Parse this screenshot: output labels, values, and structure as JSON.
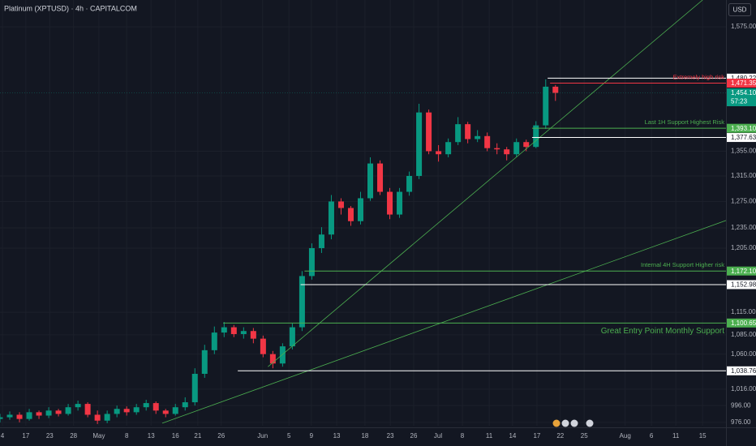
{
  "chart_data": {
    "type": "candlestick",
    "title": "Platinum (XPTUSD) · 4h · CAPITALCOM",
    "currency": "USD",
    "log_scale": true,
    "grid": true,
    "up_color": "#089981",
    "down_color": "#f23645",
    "xlim": [
      0,
      149
    ],
    "ylim": [
      972,
      1627
    ],
    "x": [
      0,
      2,
      4,
      6,
      8,
      10,
      12,
      14,
      16,
      18,
      20,
      22,
      24,
      26,
      28,
      30,
      32,
      34,
      36,
      38,
      40,
      42,
      44,
      46,
      48,
      50,
      52,
      54,
      56,
      58,
      60,
      62,
      64,
      66,
      68,
      70,
      72,
      74,
      76,
      78,
      80,
      82,
      84,
      86,
      88,
      90,
      92,
      94,
      96,
      98,
      100,
      102,
      104,
      106,
      108,
      110,
      112,
      114
    ],
    "open": [
      980,
      982,
      985,
      980,
      988,
      984,
      990,
      986,
      994,
      998,
      985,
      978,
      986,
      992,
      988,
      994,
      999,
      990,
      986,
      994,
      1000,
      1035,
      1065,
      1088,
      1095,
      1086,
      1090,
      1080,
      1060,
      1048,
      1070,
      1095,
      1165,
      1205,
      1225,
      1275,
      1265,
      1245,
      1280,
      1335,
      1290,
      1255,
      1290,
      1315,
      1420,
      1355,
      1350,
      1370,
      1400,
      1375,
      1380,
      1360,
      1358,
      1350,
      1370,
      1362,
      1398,
      1465
    ],
    "high": [
      986,
      989,
      988,
      992,
      990,
      994,
      992,
      998,
      1002,
      1000,
      990,
      990,
      996,
      995,
      998,
      1003,
      1001,
      992,
      998,
      1006,
      1042,
      1072,
      1096,
      1102,
      1098,
      1095,
      1094,
      1084,
      1064,
      1074,
      1100,
      1172,
      1212,
      1236,
      1285,
      1280,
      1268,
      1290,
      1345,
      1340,
      1296,
      1296,
      1322,
      1435,
      1425,
      1365,
      1376,
      1412,
      1404,
      1390,
      1386,
      1368,
      1362,
      1376,
      1374,
      1405,
      1478,
      1468
    ],
    "low": [
      976,
      979,
      976,
      978,
      980,
      981,
      983,
      984,
      990,
      982,
      974,
      975,
      982,
      984,
      985,
      990,
      986,
      982,
      984,
      990,
      996,
      1030,
      1060,
      1082,
      1082,
      1080,
      1074,
      1056,
      1042,
      1044,
      1066,
      1090,
      1160,
      1198,
      1218,
      1255,
      1238,
      1240,
      1276,
      1285,
      1248,
      1250,
      1284,
      1310,
      1350,
      1338,
      1345,
      1365,
      1368,
      1370,
      1355,
      1350,
      1340,
      1345,
      1355,
      1360,
      1392,
      1440
    ],
    "close": [
      982,
      985,
      980,
      988,
      984,
      990,
      986,
      994,
      998,
      985,
      978,
      986,
      992,
      988,
      994,
      999,
      990,
      986,
      994,
      1000,
      1035,
      1065,
      1088,
      1095,
      1086,
      1090,
      1080,
      1060,
      1048,
      1070,
      1095,
      1165,
      1205,
      1225,
      1275,
      1265,
      1245,
      1280,
      1335,
      1290,
      1255,
      1290,
      1315,
      1420,
      1355,
      1350,
      1370,
      1400,
      1375,
      1380,
      1360,
      1358,
      1350,
      1370,
      1362,
      1398,
      1465,
      1454
    ],
    "yticks": [
      {
        "value": 1575,
        "label": "1,575.00"
      },
      {
        "value": 1355,
        "label": "1,355.00"
      },
      {
        "value": 1315,
        "label": "1,315.00"
      },
      {
        "value": 1275,
        "label": "1,275.00"
      },
      {
        "value": 1235,
        "label": "1,235.00"
      },
      {
        "value": 1205,
        "label": "1,205.00"
      },
      {
        "value": 1115,
        "label": "1,115.00"
      },
      {
        "value": 1085,
        "label": "1,085.00"
      },
      {
        "value": 1060,
        "label": "1,060.00"
      },
      {
        "value": 1016,
        "label": "1,016.00"
      },
      {
        "value": 996,
        "label": "996.00"
      },
      {
        "value": 976,
        "label": "976.00"
      }
    ],
    "xticks": [
      {
        "value": 0.5,
        "label": "4"
      },
      {
        "value": 5.3,
        "label": "17"
      },
      {
        "value": 10.2,
        "label": "23"
      },
      {
        "value": 15.1,
        "label": "28"
      },
      {
        "value": 20.3,
        "label": "May"
      },
      {
        "value": 26,
        "label": "8"
      },
      {
        "value": 31,
        "label": "13"
      },
      {
        "value": 36,
        "label": "16"
      },
      {
        "value": 40.6,
        "label": "21"
      },
      {
        "value": 45.4,
        "label": "26"
      },
      {
        "value": 53.9,
        "label": "Jun"
      },
      {
        "value": 59.3,
        "label": "5"
      },
      {
        "value": 63.9,
        "label": "9"
      },
      {
        "value": 69.1,
        "label": "13"
      },
      {
        "value": 74.9,
        "label": "18"
      },
      {
        "value": 80.1,
        "label": "23"
      },
      {
        "value": 84.9,
        "label": "26"
      },
      {
        "value": 89.9,
        "label": "Jul"
      },
      {
        "value": 94.9,
        "label": "8"
      },
      {
        "value": 100.4,
        "label": "11"
      },
      {
        "value": 105.2,
        "label": "14"
      },
      {
        "value": 110.2,
        "label": "17"
      },
      {
        "value": 115,
        "label": "22"
      },
      {
        "value": 119.9,
        "label": "25"
      },
      {
        "value": 128.3,
        "label": "Aug"
      },
      {
        "value": 133.7,
        "label": "6"
      },
      {
        "value": 138.7,
        "label": "11"
      },
      {
        "value": 144.2,
        "label": "15"
      }
    ],
    "hlines": [
      {
        "value": 1480.22,
        "label": "1,480.22",
        "color": "#ffffff",
        "from": 112.4
      },
      {
        "value": 1471.35,
        "label": "1,471.35",
        "color": "#f23645",
        "from": 112.9,
        "text": "Extremely high risk"
      },
      {
        "value": 1454.1,
        "label": "1,454.10",
        "countdown": "57:23",
        "color": "#089981",
        "from": 0,
        "dashed": true
      },
      {
        "value": 1393.1,
        "label": "1,393.10",
        "color": "#4caf50",
        "from": 109.2,
        "text": "Last 1H Support Highest Risk"
      },
      {
        "value": 1377.63,
        "label": "1,377.63",
        "color": "#ffffff",
        "from": 109.2
      },
      {
        "value": 1172.1,
        "label": "1,172.10",
        "color": "#4caf50",
        "from": 62.5,
        "text": "Internal 4H Support Higher risk"
      },
      {
        "value": 1152.98,
        "label": "1,152.98",
        "color": "#ffffff",
        "from": 61.7
      },
      {
        "value": 1100.65,
        "label": "1,100.65",
        "color": "#4caf50",
        "from": 45.8,
        "text": "Great Entry Point Monthly Support",
        "big": true
      },
      {
        "value": 1038.76,
        "label": "1,038.76",
        "color": "#ffffff",
        "from": 48.8
      }
    ],
    "trendlines": [
      {
        "x": [
          55,
          144.2
        ],
        "y": [
          1044,
          1627
        ],
        "color": "#4caf50"
      },
      {
        "x": [
          33.3,
          149
        ],
        "y": [
          975,
          1246
        ],
        "color": "#4caf50"
      }
    ]
  }
}
